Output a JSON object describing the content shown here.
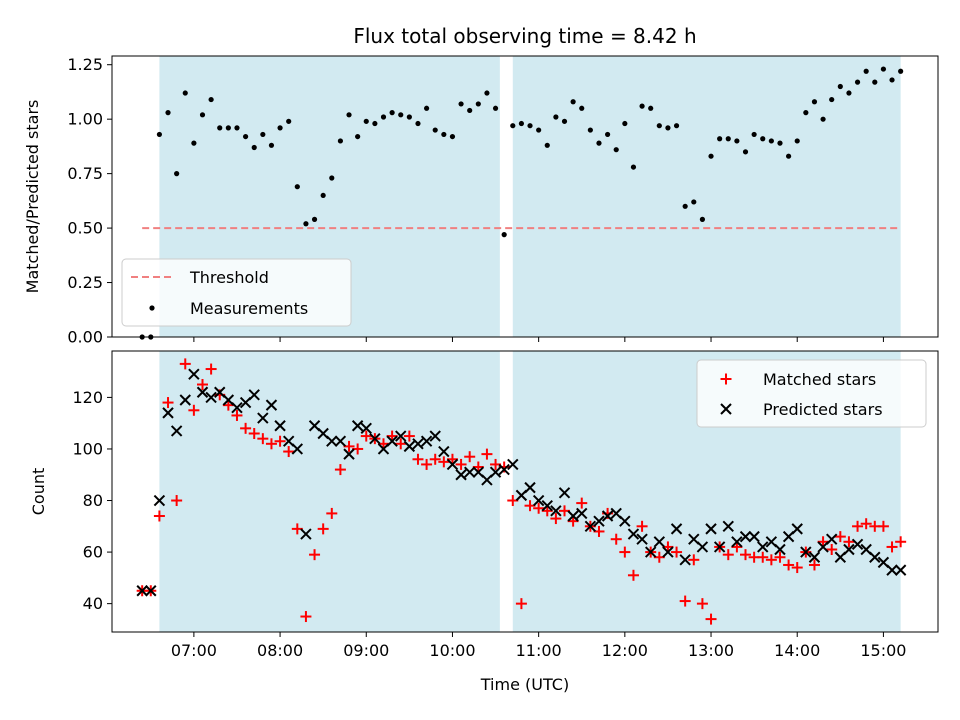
{
  "colors": {
    "shade": "#add8e6",
    "threshold": "#f08080",
    "matched": "#ff0000",
    "predicted": "#000000",
    "ratio": "#000000"
  },
  "chart_data": [
    {
      "type": "scatter",
      "title": "Flux total observing time = 8.42 h",
      "xlabel": "",
      "ylabel": "Matched/Predicted stars",
      "ylim": [
        0,
        1.29
      ],
      "yticks": [
        "0.00",
        "0.25",
        "0.50",
        "0.75",
        "1.00",
        "1.25"
      ],
      "shaded_spans": [
        [
          "06:36",
          "10:33"
        ],
        [
          "10:42",
          "15:12"
        ]
      ],
      "threshold": {
        "name": "Threshold",
        "value": 0.5,
        "x": [
          "06:24",
          "15:12"
        ]
      },
      "series": [
        {
          "name": "Measurements",
          "x": [
            "06:24",
            "06:30",
            "06:36",
            "06:42",
            "06:48",
            "06:54",
            "07:00",
            "07:06",
            "07:12",
            "07:18",
            "07:24",
            "07:30",
            "07:36",
            "07:42",
            "07:48",
            "07:54",
            "08:00",
            "08:06",
            "08:12",
            "08:18",
            "08:24",
            "08:30",
            "08:36",
            "08:42",
            "08:48",
            "08:54",
            "09:00",
            "09:06",
            "09:12",
            "09:18",
            "09:24",
            "09:30",
            "09:36",
            "09:42",
            "09:48",
            "09:54",
            "10:00",
            "10:06",
            "10:12",
            "10:18",
            "10:24",
            "10:30",
            "10:36",
            "10:42",
            "10:48",
            "10:54",
            "11:00",
            "11:06",
            "11:12",
            "11:18",
            "11:24",
            "11:30",
            "11:36",
            "11:42",
            "11:48",
            "11:54",
            "12:00",
            "12:06",
            "12:12",
            "12:18",
            "12:24",
            "12:30",
            "12:36",
            "12:42",
            "12:48",
            "12:54",
            "13:00",
            "13:06",
            "13:12",
            "13:18",
            "13:24",
            "13:30",
            "13:36",
            "13:42",
            "13:48",
            "13:54",
            "14:00",
            "14:06",
            "14:12",
            "14:18",
            "14:24",
            "14:30",
            "14:36",
            "14:42",
            "14:48",
            "14:54",
            "15:00",
            "15:06",
            "15:12"
          ],
          "values": [
            0.0,
            0.0,
            0.93,
            1.03,
            0.75,
            1.12,
            0.89,
            1.02,
            1.09,
            0.96,
            0.96,
            0.96,
            0.92,
            0.87,
            0.93,
            0.88,
            0.96,
            0.99,
            0.69,
            0.52,
            0.54,
            0.65,
            0.73,
            0.9,
            1.02,
            0.92,
            0.99,
            0.98,
            1.01,
            1.03,
            1.02,
            1.01,
            0.98,
            1.05,
            0.95,
            0.93,
            0.92,
            1.07,
            1.04,
            1.07,
            1.12,
            1.05,
            0.47,
            0.97,
            0.98,
            0.97,
            0.95,
            0.88,
            1.01,
            0.99,
            1.08,
            1.05,
            0.95,
            0.89,
            0.93,
            0.86,
            0.98,
            0.78,
            1.06,
            1.05,
            0.97,
            0.96,
            0.97,
            0.6,
            0.62,
            0.54,
            0.83,
            0.91,
            0.91,
            0.9,
            0.85,
            0.93,
            0.91,
            0.9,
            0.89,
            0.83,
            0.9,
            1.03,
            1.08,
            1.0,
            1.09,
            1.15,
            1.12,
            1.17,
            1.22,
            1.17,
            1.23,
            1.18,
            1.22
          ]
        }
      ]
    },
    {
      "type": "scatter",
      "xlabel": "Time (UTC)",
      "ylabel": "Count",
      "ylim": [
        29,
        138
      ],
      "yticks": [
        "40",
        "60",
        "80",
        "100",
        "120"
      ],
      "xticks": [
        "07:00",
        "08:00",
        "09:00",
        "10:00",
        "11:00",
        "12:00",
        "13:00",
        "14:00",
        "15:00"
      ],
      "x": [
        "06:24",
        "06:30",
        "06:36",
        "06:42",
        "06:48",
        "06:54",
        "07:00",
        "07:06",
        "07:12",
        "07:18",
        "07:24",
        "07:30",
        "07:36",
        "07:42",
        "07:48",
        "07:54",
        "08:00",
        "08:06",
        "08:12",
        "08:18",
        "08:24",
        "08:30",
        "08:36",
        "08:42",
        "08:48",
        "08:54",
        "09:00",
        "09:06",
        "09:12",
        "09:18",
        "09:24",
        "09:30",
        "09:36",
        "09:42",
        "09:48",
        "09:54",
        "10:00",
        "10:06",
        "10:12",
        "10:18",
        "10:24",
        "10:30",
        "10:36",
        "10:42",
        "10:48",
        "10:54",
        "11:00",
        "11:06",
        "11:12",
        "11:18",
        "11:24",
        "11:30",
        "11:36",
        "11:42",
        "11:48",
        "11:54",
        "12:00",
        "12:06",
        "12:12",
        "12:18",
        "12:24",
        "12:30",
        "12:36",
        "12:42",
        "12:48",
        "12:54",
        "13:00",
        "13:06",
        "13:12",
        "13:18",
        "13:24",
        "13:30",
        "13:36",
        "13:42",
        "13:48",
        "13:54",
        "14:00",
        "14:06",
        "14:12",
        "14:18",
        "14:24",
        "14:30",
        "14:36",
        "14:42",
        "14:48",
        "14:54",
        "15:00",
        "15:06",
        "15:12"
      ],
      "series": [
        {
          "name": "Matched stars",
          "marker": "+",
          "values": [
            45,
            45,
            74,
            118,
            80,
            133,
            115,
            125,
            131,
            121,
            117,
            113,
            108,
            106,
            104,
            102,
            103,
            99,
            69,
            35,
            59,
            69,
            75,
            92,
            101,
            100,
            105,
            104,
            102,
            105,
            102,
            105,
            96,
            94,
            96,
            95,
            96,
            94,
            97,
            93,
            98,
            94,
            93,
            80,
            40,
            78,
            77,
            76,
            73,
            76,
            72,
            79,
            70,
            68,
            75,
            65,
            60,
            51,
            70,
            60,
            58,
            62,
            60,
            41,
            57,
            40,
            34,
            62,
            59,
            62,
            59,
            58,
            58,
            57,
            58,
            55,
            54,
            60,
            55,
            64,
            61,
            66,
            64,
            70,
            71,
            70,
            70,
            62,
            64
          ]
        },
        {
          "name": "Predicted stars",
          "marker": "x",
          "values": [
            45,
            45,
            80,
            114,
            107,
            119,
            129,
            122,
            120,
            122,
            119,
            116,
            118,
            121,
            112,
            117,
            109,
            103,
            100,
            67,
            109,
            106,
            103,
            103,
            98,
            109,
            108,
            104,
            100,
            103,
            105,
            101,
            102,
            103,
            105,
            99,
            94,
            90,
            91,
            91,
            88,
            91,
            92,
            94,
            82,
            85,
            80,
            78,
            76,
            83,
            74,
            75,
            70,
            72,
            74,
            75,
            72,
            67,
            65,
            60,
            64,
            60,
            69,
            57,
            65,
            62,
            69,
            62,
            70,
            64,
            66,
            66,
            62,
            64,
            61,
            66,
            69,
            60,
            58,
            62,
            65,
            58,
            61,
            63,
            61,
            58,
            56,
            53,
            53
          ]
        }
      ]
    }
  ]
}
